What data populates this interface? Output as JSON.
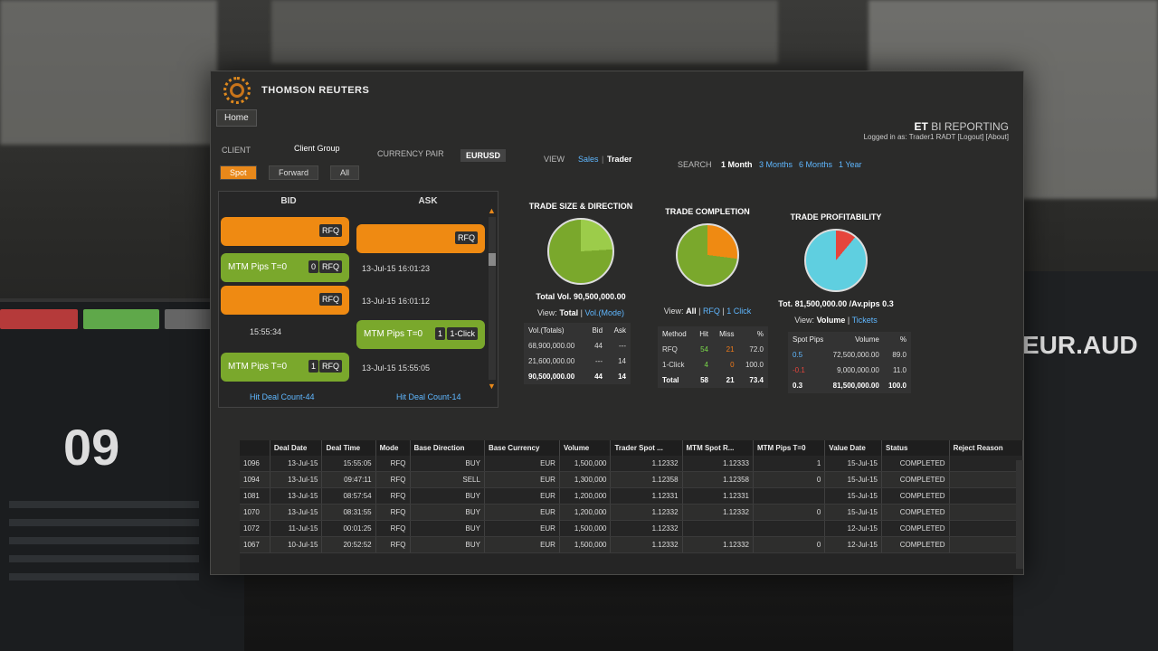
{
  "app": {
    "brand": "THOMSON REUTERS",
    "home_tab": "Home",
    "report_title_prefix": "ET",
    "report_title": "BI REPORTING",
    "logged_in": "Logged in as: Trader1 RADT [Logout] [About]"
  },
  "filters": {
    "client_label": "CLIENT",
    "client_group": "Client Group",
    "currency_pair_label": "CURRENCY PAIR",
    "currency_pair": "EURUSD",
    "view_label": "VIEW",
    "view_options": [
      "Sales",
      "Trader"
    ],
    "search_label": "SEARCH",
    "search_options": [
      "1 Month",
      "3 Months",
      "6 Months",
      "1 Year"
    ],
    "segments": [
      "Spot",
      "Forward",
      "All"
    ]
  },
  "quotes": {
    "bid_label": "BID",
    "ask_label": "ASK",
    "rfq": "RFQ",
    "one_click": "1-Click",
    "mtm_label": "MTM Pips T=0",
    "badge_0": "0",
    "badge_1": "1",
    "times": [
      "13-Jul-15 16:01:23",
      "13-Jul-15 16:01:12",
      "15:55:34",
      "13-Jul-15 15:55:05"
    ],
    "hit_bid": "Hit Deal Count-44",
    "hit_ask": "Hit Deal Count-14"
  },
  "trade_size": {
    "title": "TRADE SIZE & DIRECTION",
    "caption": "Total Vol. 90,500,000.00",
    "view_prefix": "View:",
    "view_active": "Total",
    "view_alt": "Vol.(Mode)",
    "headers": [
      "Vol.(Totals)",
      "Bid",
      "Ask"
    ],
    "rows": [
      [
        "68,900,000.00",
        "44",
        "---"
      ],
      [
        "21,600,000.00",
        "---",
        "14"
      ]
    ],
    "total": [
      "90,500,000.00",
      "44",
      "14"
    ],
    "pie_fraction_bid": 0.76
  },
  "completion": {
    "title": "TRADE COMPLETION",
    "view_prefix": "View:",
    "view_active": "All",
    "view_alt1": "RFQ",
    "view_alt2": "1 Click",
    "headers": [
      "Method",
      "Hit",
      "Miss",
      "%"
    ],
    "rows": [
      [
        "RFQ",
        "54",
        "21",
        "72.0"
      ],
      [
        "1-Click",
        "4",
        "0",
        "100.0"
      ]
    ],
    "total": [
      "Total",
      "58",
      "21",
      "73.4"
    ],
    "pie_fraction_miss": 0.27
  },
  "profitability": {
    "title": "TRADE PROFITABILITY",
    "caption": "Tot. 81,500,000.00 /Av.pips 0.3",
    "view_prefix": "View:",
    "view_active": "Volume",
    "view_alt": "Tickets",
    "headers": [
      "Spot Pips",
      "Volume",
      "%"
    ],
    "rows": [
      [
        "0.5",
        "72,500,000.00",
        "89.0"
      ],
      [
        "-0.1",
        "9,000,000.00",
        "11.0"
      ]
    ],
    "total": [
      "0.3",
      "81,500,000.00",
      "100.0"
    ],
    "pie_fraction_neg": 0.11
  },
  "deals": {
    "headers": [
      "",
      "Deal Date",
      "Deal Time",
      "Mode",
      "Base Direction",
      "Base Currency",
      "Volume",
      "Trader Spot ...",
      "MTM Spot R...",
      "MTM Pips T=0",
      "Value Date",
      "Status",
      "Reject Reason"
    ],
    "rows": [
      [
        "1096",
        "13-Jul-15",
        "15:55:05",
        "RFQ",
        "BUY",
        "EUR",
        "1,500,000",
        "1.12332",
        "1.12333",
        "1",
        "15-Jul-15",
        "COMPLETED",
        ""
      ],
      [
        "1094",
        "13-Jul-15",
        "09:47:11",
        "RFQ",
        "SELL",
        "EUR",
        "1,300,000",
        "1.12358",
        "1.12358",
        "0",
        "15-Jul-15",
        "COMPLETED",
        ""
      ],
      [
        "1081",
        "13-Jul-15",
        "08:57:54",
        "RFQ",
        "BUY",
        "EUR",
        "1,200,000",
        "1.12331",
        "1.12331",
        "",
        "15-Jul-15",
        "COMPLETED",
        ""
      ],
      [
        "1070",
        "13-Jul-15",
        "08:31:55",
        "RFQ",
        "BUY",
        "EUR",
        "1,200,000",
        "1.12332",
        "1.12332",
        "0",
        "15-Jul-15",
        "COMPLETED",
        ""
      ],
      [
        "1072",
        "11-Jul-15",
        "00:01:25",
        "RFQ",
        "BUY",
        "EUR",
        "1,500,000",
        "1.12332",
        "",
        "",
        "12-Jul-15",
        "COMPLETED",
        ""
      ],
      [
        "1067",
        "10-Jul-15",
        "20:52:52",
        "RFQ",
        "BUY",
        "EUR",
        "1,500,000",
        "1.12332",
        "1.12332",
        "0",
        "12-Jul-15",
        "COMPLETED",
        ""
      ]
    ]
  },
  "background": {
    "left_big_number": "09",
    "right_pair": "EUR.AUD"
  },
  "colors": {
    "orange": "#ef8a12",
    "green": "#7aa82c",
    "teal": "#5fcfe0",
    "red": "#e5453c",
    "link": "#5fb7ff"
  }
}
